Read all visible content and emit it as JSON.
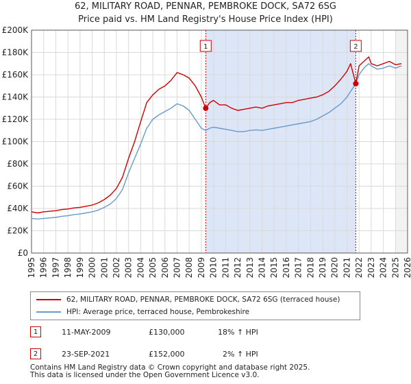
{
  "header": {
    "title": "62, MILITARY ROAD, PENNAR, PEMBROKE DOCK, SA72 6SG",
    "subtitle": "Price paid vs. HM Land Registry's House Price Index (HPI)"
  },
  "colors": {
    "property": "#cc0000",
    "hpi": "#6699cc",
    "shade": "#dde6f7",
    "marker_line": "#cc0000",
    "grid": "#d9d9d9"
  },
  "chart_data": {
    "type": "line",
    "xlabel": "",
    "ylabel": "",
    "xlim": [
      1995,
      2026
    ],
    "ylim": [
      0,
      200000
    ],
    "grid": true,
    "legend_position": "bottom",
    "y_ticks": [
      {
        "value": 0,
        "label": "£0"
      },
      {
        "value": 20000,
        "label": "£20K"
      },
      {
        "value": 40000,
        "label": "£40K"
      },
      {
        "value": 60000,
        "label": "£60K"
      },
      {
        "value": 80000,
        "label": "£80K"
      },
      {
        "value": 100000,
        "label": "£100K"
      },
      {
        "value": 120000,
        "label": "£120K"
      },
      {
        "value": 140000,
        "label": "£140K"
      },
      {
        "value": 160000,
        "label": "£160K"
      },
      {
        "value": 180000,
        "label": "£180K"
      },
      {
        "value": 200000,
        "label": "£200K"
      }
    ],
    "x_ticks": [
      "1995",
      "1996",
      "1997",
      "1998",
      "1999",
      "2000",
      "2001",
      "2002",
      "2003",
      "2004",
      "2005",
      "2006",
      "2007",
      "2008",
      "2009",
      "2010",
      "2011",
      "2012",
      "2013",
      "2014",
      "2015",
      "2016",
      "2017",
      "2018",
      "2019",
      "2020",
      "2021",
      "2022",
      "2023",
      "2024",
      "2025",
      "2026"
    ],
    "series": [
      {
        "name": "62, MILITARY ROAD, PENNAR, PEMBROKE DOCK, SA72 6SG (terraced house)",
        "color": "#cc0000",
        "x": [
          1995.0,
          1995.5,
          1996.0,
          1996.5,
          1997.0,
          1997.5,
          1998.0,
          1998.5,
          1999.0,
          1999.5,
          2000.0,
          2000.5,
          2001.0,
          2001.5,
          2002.0,
          2002.5,
          2003.0,
          2003.5,
          2004.0,
          2004.5,
          2005.0,
          2005.5,
          2006.0,
          2006.5,
          2007.0,
          2007.5,
          2008.0,
          2008.5,
          2009.0,
          2009.36,
          2009.7,
          2010.0,
          2010.5,
          2011.0,
          2011.5,
          2012.0,
          2012.5,
          2013.0,
          2013.5,
          2014.0,
          2014.5,
          2015.0,
          2015.5,
          2016.0,
          2016.5,
          2017.0,
          2017.5,
          2018.0,
          2018.5,
          2019.0,
          2019.5,
          2020.0,
          2020.5,
          2021.0,
          2021.3,
          2021.73,
          2022.0,
          2022.4,
          2022.8,
          2023.0,
          2023.5,
          2024.0,
          2024.5,
          2025.0,
          2025.5
        ],
        "values": [
          37000,
          36000,
          37000,
          37500,
          38000,
          39000,
          39500,
          40500,
          41000,
          42000,
          43000,
          45000,
          48000,
          52000,
          58000,
          68000,
          85000,
          100000,
          118000,
          135000,
          142000,
          147000,
          150000,
          155000,
          162000,
          160000,
          157000,
          150000,
          140000,
          130000,
          135000,
          137000,
          133000,
          133000,
          130000,
          128000,
          129000,
          130000,
          131000,
          130000,
          132000,
          133000,
          134000,
          135000,
          135000,
          137000,
          138000,
          139000,
          140000,
          142000,
          145000,
          150000,
          156000,
          163000,
          170000,
          152000,
          168000,
          172000,
          176000,
          170000,
          168000,
          170000,
          172000,
          169000,
          170000
        ]
      },
      {
        "name": "HPI: Average price, terraced house, Pembrokeshire",
        "color": "#6699cc",
        "x": [
          1995.0,
          1995.5,
          1996.0,
          1996.5,
          1997.0,
          1997.5,
          1998.0,
          1998.5,
          1999.0,
          1999.5,
          2000.0,
          2000.5,
          2001.0,
          2001.5,
          2002.0,
          2002.5,
          2003.0,
          2003.5,
          2004.0,
          2004.5,
          2005.0,
          2005.5,
          2006.0,
          2006.5,
          2007.0,
          2007.5,
          2008.0,
          2008.5,
          2009.0,
          2009.36,
          2009.7,
          2010.0,
          2010.5,
          2011.0,
          2011.5,
          2012.0,
          2012.5,
          2013.0,
          2013.5,
          2014.0,
          2014.5,
          2015.0,
          2015.5,
          2016.0,
          2016.5,
          2017.0,
          2017.5,
          2018.0,
          2018.5,
          2019.0,
          2019.5,
          2020.0,
          2020.5,
          2021.0,
          2021.3,
          2021.73,
          2022.0,
          2022.4,
          2022.8,
          2023.0,
          2023.5,
          2024.0,
          2024.5,
          2025.0,
          2025.5
        ],
        "values": [
          31000,
          30500,
          31000,
          31500,
          32000,
          33000,
          33500,
          34500,
          35000,
          36000,
          37000,
          38500,
          41000,
          44000,
          49000,
          57000,
          72000,
          85000,
          98000,
          112000,
          120000,
          124000,
          127000,
          130000,
          134000,
          132000,
          128000,
          120000,
          112000,
          110000,
          112000,
          113000,
          112000,
          111000,
          110000,
          109000,
          109000,
          110000,
          110500,
          110000,
          111000,
          112000,
          113000,
          114000,
          115000,
          116000,
          117000,
          118000,
          120000,
          123000,
          126000,
          130000,
          134000,
          140000,
          145000,
          152000,
          160000,
          166000,
          170000,
          168000,
          165000,
          166000,
          168000,
          166000,
          168000
        ]
      }
    ],
    "annotations": [
      {
        "label": "1",
        "x": 2009.36,
        "value": 130000
      },
      {
        "label": "2",
        "x": 2021.73,
        "value": 152000
      }
    ]
  },
  "legend": {
    "property_label": "62, MILITARY ROAD, PENNAR, PEMBROKE DOCK, SA72 6SG (terraced house)",
    "hpi_label": "HPI: Average price, terraced house, Pembrokeshire"
  },
  "sales": [
    {
      "num": "1",
      "date": "11-MAY-2009",
      "price": "£130,000",
      "hpi": "18% ↑ HPI"
    },
    {
      "num": "2",
      "date": "23-SEP-2021",
      "price": "£152,000",
      "hpi": "  2% ↑ HPI"
    }
  ],
  "footer": {
    "line1": "Contains HM Land Registry data © Crown copyright and database right 2025.",
    "line2": "This data is licensed under the Open Government Licence v3.0."
  }
}
